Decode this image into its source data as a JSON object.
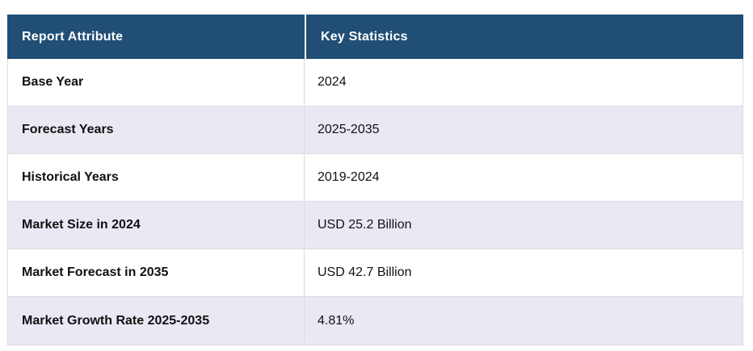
{
  "table": {
    "columns": [
      "Report Attribute",
      "Key Statistics"
    ],
    "rows": [
      {
        "attribute": "Base Year",
        "value": "2024"
      },
      {
        "attribute": "Forecast Years",
        "value": "2025-2035"
      },
      {
        "attribute": "Historical Years",
        "value": "2019-2024"
      },
      {
        "attribute": "Market Size in 2024",
        "value": "USD 25.2 Billion"
      },
      {
        "attribute": "Market Forecast in 2035",
        "value": "USD 42.7 Billion"
      },
      {
        "attribute": "Market Growth Rate 2025-2035",
        "value": "4.81%"
      }
    ]
  },
  "colors": {
    "header_bg": "#204E75",
    "header_text": "#FFFFFF",
    "row_bg": "#FFFFFF",
    "row_alt_bg": "#E9E9F3",
    "border": "#DCDCE2",
    "body_text": "#111111"
  }
}
